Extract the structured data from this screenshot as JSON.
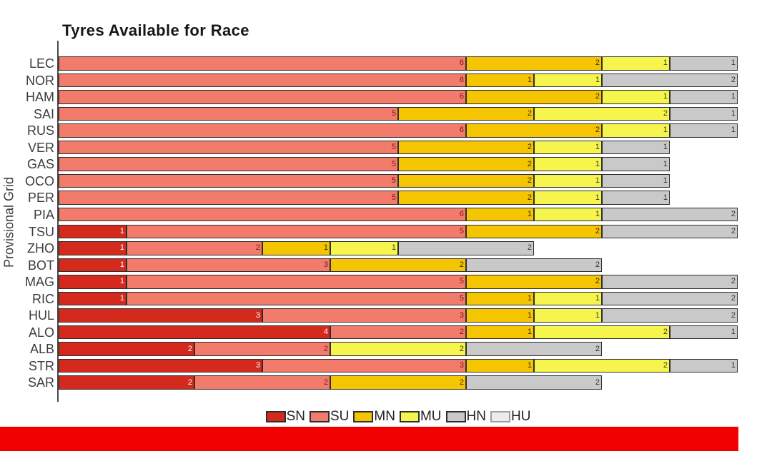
{
  "title": "Tyres Available for Race",
  "ylabel": "Provisional Grid",
  "footer": {
    "bar_color": "#f10000"
  },
  "chart_data": {
    "type": "bar",
    "orientation": "horizontal",
    "stacked": true,
    "title": "Tyres Available for Race",
    "ylabel": "Provisional Grid",
    "xlim": [
      0,
      10
    ],
    "grid": false,
    "legend_position": "bottom-center",
    "categories": [
      "LEC",
      "NOR",
      "HAM",
      "SAI",
      "RUS",
      "VER",
      "GAS",
      "OCO",
      "PER",
      "PIA",
      "TSU",
      "ZHO",
      "BOT",
      "MAG",
      "RIC",
      "HUL",
      "ALO",
      "ALB",
      "STR",
      "SAR"
    ],
    "series": [
      {
        "name": "SN",
        "color": "#d42a1d",
        "border": "#2e2e2e",
        "label_color": "#ffffff",
        "values": [
          0,
          0,
          0,
          0,
          0,
          0,
          0,
          0,
          0,
          0,
          1,
          1,
          1,
          1,
          1,
          3,
          4,
          2,
          3,
          2
        ]
      },
      {
        "name": "SU",
        "color": "#f27b6c",
        "border": "#2e2e2e",
        "label_color": "#7f150a",
        "values": [
          6,
          6,
          6,
          5,
          6,
          5,
          5,
          5,
          5,
          6,
          5,
          2,
          3,
          5,
          5,
          3,
          2,
          2,
          3,
          2
        ]
      },
      {
        "name": "MN",
        "color": "#f4c500",
        "border": "#2e2e2e",
        "label_color": "#3a3000",
        "values": [
          2,
          1,
          2,
          2,
          2,
          2,
          2,
          2,
          2,
          1,
          2,
          1,
          2,
          2,
          1,
          1,
          1,
          0,
          1,
          2
        ]
      },
      {
        "name": "MU",
        "color": "#f6f54e",
        "border": "#2e2e2e",
        "label_color": "#3c3b14",
        "values": [
          1,
          1,
          1,
          2,
          1,
          1,
          1,
          1,
          1,
          1,
          0,
          1,
          0,
          0,
          1,
          1,
          2,
          2,
          2,
          0
        ]
      },
      {
        "name": "HN",
        "color": "#c9c9c9",
        "border": "#2e2e2e",
        "label_color": "#333333",
        "values": [
          1,
          2,
          1,
          1,
          1,
          1,
          1,
          1,
          1,
          2,
          2,
          2,
          2,
          2,
          2,
          2,
          1,
          2,
          1,
          2
        ]
      },
      {
        "name": "HU",
        "color": "#ececec",
        "border": "#9e9e9e",
        "label_color": "#555555",
        "values": [
          0,
          0,
          0,
          0,
          0,
          0,
          0,
          0,
          0,
          0,
          0,
          0,
          0,
          0,
          0,
          0,
          0,
          0,
          0,
          0
        ]
      }
    ]
  }
}
